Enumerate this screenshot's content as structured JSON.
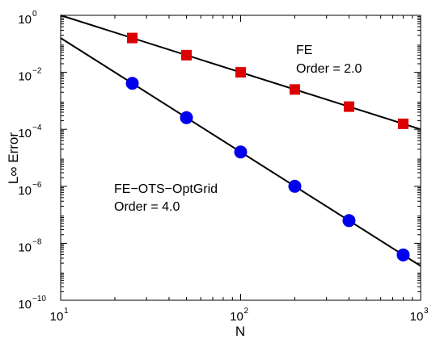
{
  "chart_data": {
    "type": "line",
    "title": "",
    "xlabel": "N",
    "ylabel": "L∞ Error",
    "xscale": "log",
    "yscale": "log",
    "xlim": [
      10,
      1000
    ],
    "ylim": [
      1e-10,
      1
    ],
    "xticks": [
      {
        "value": 10,
        "base": "10",
        "exp": "1"
      },
      {
        "value": 100,
        "base": "10",
        "exp": "2"
      },
      {
        "value": 1000,
        "base": "10",
        "exp": "3"
      }
    ],
    "yticks": [
      {
        "value": 1,
        "base": "10",
        "exp": "0"
      },
      {
        "value": 0.01,
        "base": "10",
        "exp": "−2"
      },
      {
        "value": 0.0001,
        "base": "10",
        "exp": "−4"
      },
      {
        "value": 1e-06,
        "base": "10",
        "exp": "−6"
      },
      {
        "value": 1e-08,
        "base": "10",
        "exp": "−8"
      },
      {
        "value": 1e-10,
        "base": "10",
        "exp": "−10"
      }
    ],
    "grid": false,
    "series": [
      {
        "marker": "square",
        "color": "#dd0000",
        "x": [
          25,
          50,
          100,
          200,
          400,
          800
        ],
        "y": [
          0.16,
          0.04,
          0.01,
          0.0025,
          0.000625,
          0.000156
        ],
        "fit": {
          "order": 2.0,
          "c": 100,
          "x_range": [
            10,
            1000
          ]
        }
      },
      {
        "marker": "circle",
        "color": "#0000ee",
        "x": [
          25,
          50,
          100,
          200,
          400,
          800
        ],
        "y": [
          0.0041,
          0.000256,
          1.6e-05,
          1e-06,
          6.25e-08,
          3.9e-09
        ],
        "fit": {
          "order": 4.0,
          "c": 1600,
          "x_range": [
            10,
            1000
          ]
        }
      }
    ],
    "annotations": [
      {
        "line1": "FE",
        "line2": "Order = 2.0",
        "pos": "upper-right"
      },
      {
        "line1": "FE−OTS−OptGrid",
        "line2": "Order = 4.0",
        "pos": "middle-left"
      }
    ]
  }
}
